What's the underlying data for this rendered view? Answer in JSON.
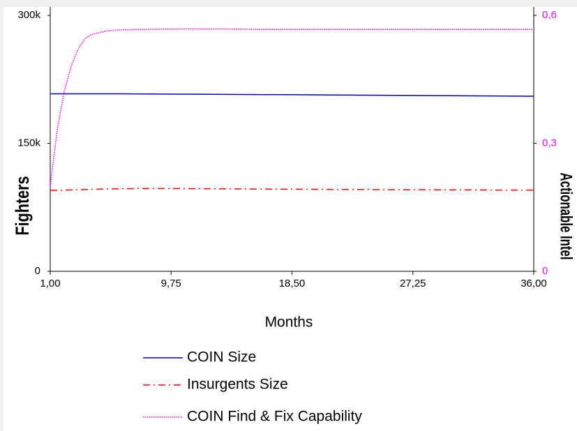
{
  "chart_data": {
    "type": "line",
    "x_label": "Months",
    "y_label": "Fighters",
    "y2_label": "Actionable Intel",
    "x": [
      1,
      1.5,
      2,
      2.5,
      3,
      3.5,
      4,
      5,
      6,
      8,
      10,
      12,
      14,
      16,
      18,
      20,
      22,
      24,
      26,
      28,
      30,
      32,
      34,
      36
    ],
    "series": [
      {
        "name": "COIN Size",
        "color": "#0000cc",
        "dash": "solid",
        "values": [
          208000,
          208000,
          208000,
          208000,
          208000,
          208000,
          208000,
          208000,
          208000,
          207800,
          207600,
          207500,
          207300,
          207100,
          207000,
          206800,
          206600,
          206400,
          206200,
          206000,
          205800,
          205600,
          205400,
          205200
        ]
      },
      {
        "name": "Insurgents Size",
        "color": "#ff0000",
        "dash": "dashdot",
        "values": [
          95000,
          95000,
          95200,
          95400,
          95600,
          95800,
          96000,
          96400,
          96800,
          97000,
          97000,
          96800,
          96600,
          96400,
          96200,
          96000,
          95800,
          95800,
          95600,
          95600,
          95400,
          95400,
          95200,
          95200
        ]
      },
      {
        "name": "COIN Find & Fix Capability",
        "color": "#ff00ff",
        "dash": "dotted",
        "axis": "y2",
        "values": [
          0.2,
          0.33,
          0.42,
          0.48,
          0.52,
          0.545,
          0.555,
          0.563,
          0.566,
          0.567,
          0.568,
          0.568,
          0.568,
          0.567,
          0.567,
          0.567,
          0.567,
          0.567,
          0.567,
          0.567,
          0.567,
          0.567,
          0.567,
          0.567
        ]
      }
    ],
    "xlim": [
      1,
      36
    ],
    "xticks": [
      {
        "value": 1,
        "label": "1,00"
      },
      {
        "value": 9.75,
        "label": "9,75"
      },
      {
        "value": 18.5,
        "label": "18,50"
      },
      {
        "value": 27.25,
        "label": "27,25"
      },
      {
        "value": 36,
        "label": "36,00"
      }
    ],
    "ylim": [
      0,
      300000
    ],
    "yticks": [
      0,
      {
        "value": 150000,
        "label": "150k"
      },
      {
        "value": 300000,
        "label": "300k"
      }
    ],
    "y2lim": [
      0,
      0.6
    ],
    "y2ticks": [
      0,
      {
        "value": 0.3,
        "label": "0,3"
      },
      {
        "value": 0.6,
        "label": "0,6"
      }
    ],
    "y2_color": "#ff00ff"
  }
}
